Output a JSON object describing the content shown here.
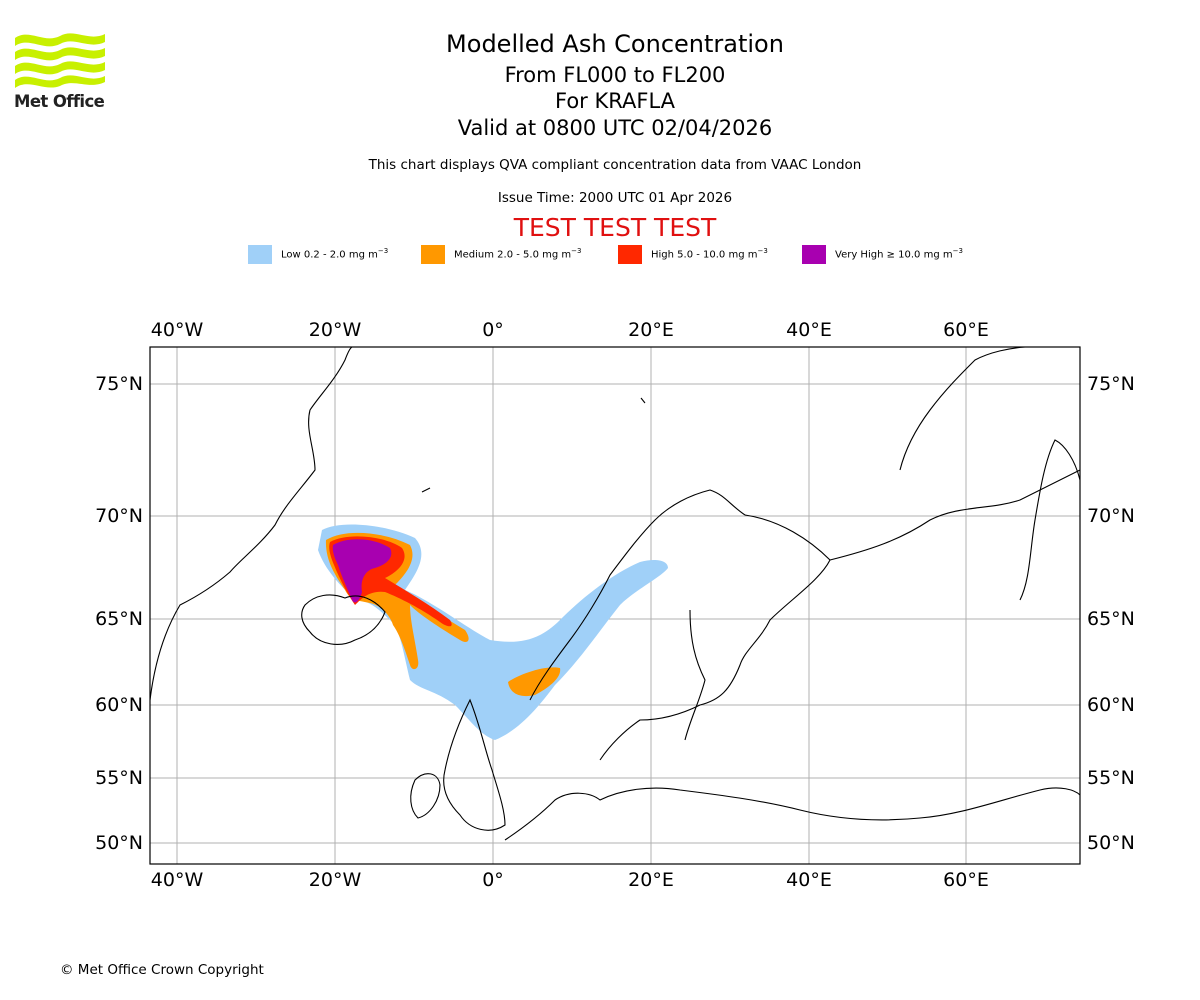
{
  "logo": {
    "text": "Met Office"
  },
  "header": {
    "title": "Modelled Ash Concentration",
    "flight_levels": "From FL000 to FL200",
    "volcano": "For KRAFLA",
    "valid_time": "Valid at 0800 UTC 02/04/2026",
    "qva_note": "This chart displays QVA compliant concentration data from VAAC London",
    "issue_time": "Issue Time: 2000 UTC 01 Apr 2026",
    "test_banner": "TEST TEST TEST"
  },
  "legend": [
    {
      "label": "Low 0.2 - 2.0 mg m",
      "unit_exp": "−3",
      "color": "#a0d0f8"
    },
    {
      "label": "Medium 2.0 - 5.0 mg m",
      "unit_exp": "−3",
      "color": "#ff9800"
    },
    {
      "label": "High 5.0 - 10.0 mg m",
      "unit_exp": "−3",
      "color": "#ff2800"
    },
    {
      "label": "Very High ≥ 10.0 mg m",
      "unit_exp": "−3",
      "color": "#a800b0"
    }
  ],
  "map": {
    "lon_ticks": [
      "40°W",
      "20°W",
      "0°",
      "20°E",
      "40°E",
      "60°E"
    ],
    "lat_ticks": [
      "75°N",
      "70°N",
      "65°N",
      "60°N",
      "55°N",
      "50°N"
    ],
    "colors": {
      "grid": "#b0b0b0",
      "coast": "#000000",
      "frame": "#000000"
    }
  },
  "footer": {
    "copyright": "© Met Office Crown Copyright"
  }
}
